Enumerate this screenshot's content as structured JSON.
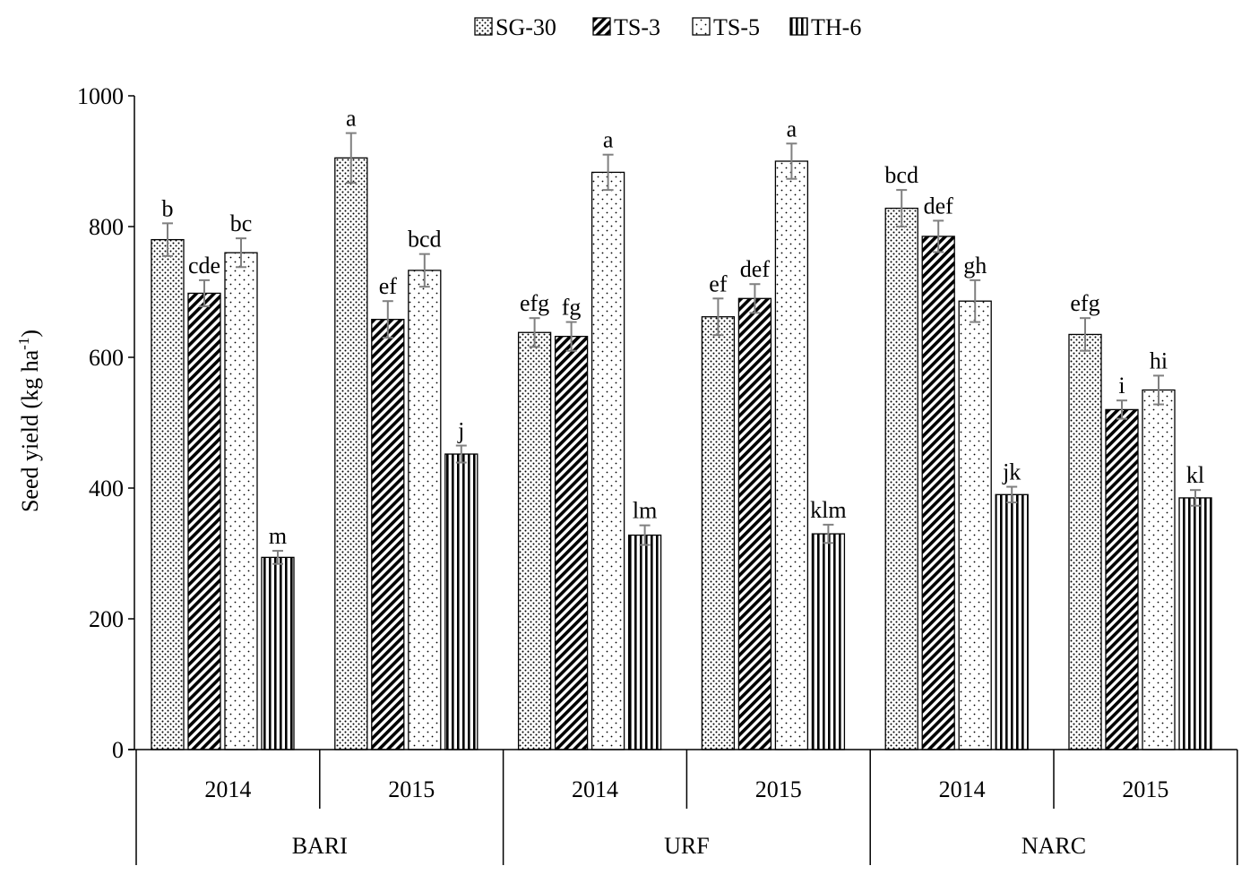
{
  "chart_data": {
    "type": "bar",
    "title": "",
    "ylabel": "Seed yield (kg ha⁻¹)",
    "ylim": [
      0,
      1000
    ],
    "yticks": [
      0,
      200,
      400,
      600,
      800,
      1000
    ],
    "legend_position": "top-center",
    "groups": [
      {
        "label": "BARI",
        "years": [
          "2014",
          "2015"
        ]
      },
      {
        "label": "URF",
        "years": [
          "2014",
          "2015"
        ]
      },
      {
        "label": "NARC",
        "years": [
          "2014",
          "2015"
        ]
      }
    ],
    "series": [
      {
        "name": "SG-30",
        "pattern": "dots",
        "values": [
          780,
          905,
          638,
          662,
          828,
          635
        ],
        "errors": [
          25,
          38,
          22,
          28,
          28,
          25
        ],
        "labels": [
          "b",
          "a",
          "efg",
          "ef",
          "bcd",
          "efg"
        ]
      },
      {
        "name": "TS-3",
        "pattern": "diagonal",
        "values": [
          698,
          658,
          632,
          690,
          785,
          520
        ],
        "errors": [
          20,
          28,
          22,
          22,
          24,
          14
        ],
        "labels": [
          "cde",
          "ef",
          "fg",
          "def",
          "def",
          "i"
        ]
      },
      {
        "name": "TS-5",
        "pattern": "sparse-dots",
        "values": [
          760,
          733,
          883,
          900,
          686,
          550
        ],
        "errors": [
          22,
          25,
          27,
          27,
          32,
          22
        ],
        "labels": [
          "bc",
          "bcd",
          "a",
          "a",
          "gh",
          "hi"
        ]
      },
      {
        "name": "TH-6",
        "pattern": "vertical",
        "values": [
          294,
          452,
          328,
          330,
          390,
          385
        ],
        "errors": [
          10,
          13,
          15,
          14,
          12,
          12
        ],
        "labels": [
          "m",
          "j",
          "lm",
          "klm",
          "jk",
          "kl"
        ]
      }
    ]
  }
}
